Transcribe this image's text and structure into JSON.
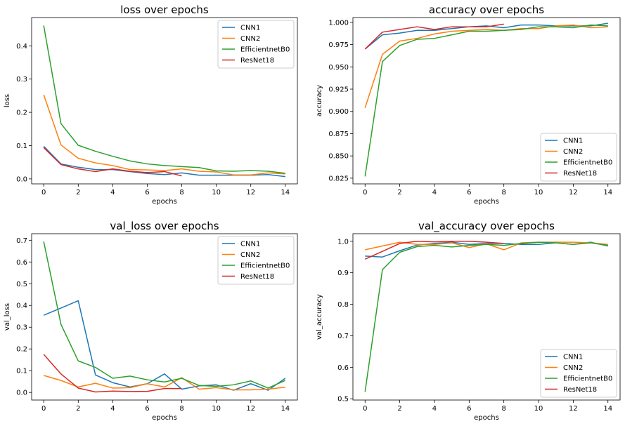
{
  "colors": {
    "CNN1": "#1f77b4",
    "CNN2": "#ff7f0e",
    "EfficientnetB0": "#2ca02c",
    "ResNet18": "#d62728"
  },
  "chart_data": [
    {
      "type": "line",
      "title": "loss over epochs",
      "xlabel": "epochs",
      "ylabel": "loss",
      "xlim": [
        -0.7,
        14.7
      ],
      "ylim": [
        -0.015,
        0.485
      ],
      "xticks": [
        0,
        2,
        4,
        6,
        8,
        10,
        12,
        14
      ],
      "yticks": [
        0.0,
        0.1,
        0.2,
        0.3,
        0.4
      ],
      "ytick_labels": [
        "0.0",
        "0.1",
        "0.2",
        "0.3",
        "0.4"
      ],
      "legend": "top-right",
      "series": [
        {
          "name": "CNN1",
          "x": [
            0,
            1,
            2,
            3,
            4,
            5,
            6,
            7,
            8,
            9,
            10,
            11,
            12,
            13,
            14
          ],
          "values": [
            0.098,
            0.045,
            0.035,
            0.028,
            0.028,
            0.022,
            0.016,
            0.013,
            0.018,
            0.011,
            0.011,
            0.011,
            0.011,
            0.013,
            0.007
          ]
        },
        {
          "name": "CNN2",
          "x": [
            0,
            1,
            2,
            3,
            4,
            5,
            6,
            7,
            8,
            9,
            10,
            11,
            12,
            13,
            14
          ],
          "values": [
            0.253,
            0.102,
            0.062,
            0.048,
            0.04,
            0.028,
            0.027,
            0.025,
            0.03,
            0.023,
            0.021,
            0.012,
            0.012,
            0.018,
            0.015
          ]
        },
        {
          "name": "EfficientnetB0",
          "x": [
            0,
            1,
            2,
            3,
            4,
            5,
            6,
            7,
            8,
            9,
            10,
            11,
            12,
            13,
            14
          ],
          "values": [
            0.461,
            0.166,
            0.101,
            0.083,
            0.068,
            0.054,
            0.045,
            0.04,
            0.037,
            0.034,
            0.024,
            0.023,
            0.025,
            0.023,
            0.017
          ]
        },
        {
          "name": "ResNet18",
          "x": [
            0,
            1,
            2,
            3,
            4,
            5,
            6,
            7,
            8
          ],
          "values": [
            0.094,
            0.043,
            0.03,
            0.022,
            0.03,
            0.023,
            0.019,
            0.022,
            0.009
          ]
        }
      ]
    },
    {
      "type": "line",
      "title": "accuracy over epochs",
      "xlabel": "epochs",
      "ylabel": "accuracy",
      "xlim": [
        -0.7,
        14.7
      ],
      "ylim": [
        0.8186,
        1.0054
      ],
      "xticks": [
        0,
        2,
        4,
        6,
        8,
        10,
        12,
        14
      ],
      "yticks": [
        0.825,
        0.85,
        0.875,
        0.9,
        0.925,
        0.95,
        0.975,
        1.0
      ],
      "ytick_labels": [
        "0.825",
        "0.850",
        "0.875",
        "0.900",
        "0.925",
        "0.950",
        "0.975",
        "1.000"
      ],
      "legend": "bottom-right",
      "series": [
        {
          "name": "CNN1",
          "x": [
            0,
            1,
            2,
            3,
            4,
            5,
            6,
            7,
            8,
            9,
            10,
            11,
            12,
            13,
            14
          ],
          "values": [
            0.97,
            0.986,
            0.988,
            0.991,
            0.991,
            0.993,
            0.995,
            0.996,
            0.994,
            0.997,
            0.997,
            0.996,
            0.996,
            0.996,
            0.999
          ]
        },
        {
          "name": "CNN2",
          "x": [
            0,
            1,
            2,
            3,
            4,
            5,
            6,
            7,
            8,
            9,
            10,
            11,
            12,
            13,
            14
          ],
          "values": [
            0.904,
            0.964,
            0.979,
            0.982,
            0.987,
            0.99,
            0.991,
            0.992,
            0.991,
            0.993,
            0.993,
            0.996,
            0.997,
            0.994,
            0.995
          ]
        },
        {
          "name": "EfficientnetB0",
          "x": [
            0,
            1,
            2,
            3,
            4,
            5,
            6,
            7,
            8,
            9,
            10,
            11,
            12,
            13,
            14
          ],
          "values": [
            0.827,
            0.956,
            0.974,
            0.981,
            0.982,
            0.986,
            0.99,
            0.99,
            0.991,
            0.992,
            0.995,
            0.995,
            0.994,
            0.997,
            0.996
          ]
        },
        {
          "name": "ResNet18",
          "x": [
            0,
            1,
            2,
            3,
            4,
            5,
            6,
            7,
            8
          ],
          "values": [
            0.97,
            0.989,
            0.992,
            0.995,
            0.992,
            0.995,
            0.995,
            0.995,
            0.998
          ]
        }
      ]
    },
    {
      "type": "line",
      "title": "val_loss over epochs",
      "xlabel": "epochs",
      "ylabel": "val_loss",
      "xlim": [
        -0.7,
        14.7
      ],
      "ylim": [
        -0.035,
        0.73
      ],
      "xticks": [
        0,
        2,
        4,
        6,
        8,
        10,
        12,
        14
      ],
      "yticks": [
        0.0,
        0.1,
        0.2,
        0.3,
        0.4,
        0.5,
        0.6,
        0.7
      ],
      "ytick_labels": [
        "0.0",
        "0.1",
        "0.2",
        "0.3",
        "0.4",
        "0.5",
        "0.6",
        "0.7"
      ],
      "legend": "top-right",
      "series": [
        {
          "name": "CNN1",
          "x": [
            0,
            1,
            2,
            3,
            4,
            5,
            6,
            7,
            8,
            9,
            10,
            11,
            12,
            13,
            14
          ],
          "values": [
            0.355,
            0.388,
            0.422,
            0.08,
            0.045,
            0.025,
            0.04,
            0.085,
            0.015,
            0.03,
            0.035,
            0.01,
            0.04,
            0.01,
            0.065
          ]
        },
        {
          "name": "CNN2",
          "x": [
            0,
            1,
            2,
            3,
            4,
            5,
            6,
            7,
            8,
            9,
            10,
            11,
            12,
            13,
            14
          ],
          "values": [
            0.078,
            0.055,
            0.025,
            0.042,
            0.02,
            0.022,
            0.04,
            0.025,
            0.068,
            0.015,
            0.022,
            0.012,
            0.012,
            0.015,
            0.024
          ]
        },
        {
          "name": "EfficientnetB0",
          "x": [
            0,
            1,
            2,
            3,
            4,
            5,
            6,
            7,
            8,
            9,
            10,
            11,
            12,
            13,
            14
          ],
          "values": [
            0.694,
            0.313,
            0.145,
            0.115,
            0.065,
            0.075,
            0.058,
            0.048,
            0.065,
            0.032,
            0.028,
            0.035,
            0.053,
            0.02,
            0.055
          ]
        },
        {
          "name": "ResNet18",
          "x": [
            0,
            1,
            2,
            3,
            4,
            5,
            6,
            7,
            8
          ],
          "values": [
            0.175,
            0.085,
            0.02,
            0.002,
            0.006,
            0.004,
            0.005,
            0.018,
            0.018
          ]
        }
      ]
    },
    {
      "type": "line",
      "title": "val_accuracy over epochs",
      "xlabel": "epochs",
      "ylabel": "val_accuracy",
      "xlim": [
        -0.7,
        14.7
      ],
      "ylim": [
        0.496,
        1.024
      ],
      "xticks": [
        0,
        2,
        4,
        6,
        8,
        10,
        12,
        14
      ],
      "yticks": [
        0.5,
        0.6,
        0.7,
        0.8,
        0.9,
        1.0
      ],
      "ytick_labels": [
        "0.5",
        "0.6",
        "0.7",
        "0.8",
        "0.9",
        "1.0"
      ],
      "legend": "bottom-right",
      "series": [
        {
          "name": "CNN1",
          "x": [
            0,
            1,
            2,
            3,
            4,
            5,
            6,
            7,
            8,
            9,
            10,
            11,
            12,
            13,
            14
          ],
          "values": [
            0.953,
            0.95,
            0.97,
            0.988,
            0.993,
            0.997,
            0.99,
            0.993,
            0.993,
            0.99,
            0.99,
            0.995,
            0.99,
            0.997,
            0.985
          ]
        },
        {
          "name": "CNN2",
          "x": [
            0,
            1,
            2,
            3,
            4,
            5,
            6,
            7,
            8,
            9,
            10,
            11,
            12,
            13,
            14
          ],
          "values": [
            0.973,
            0.985,
            0.997,
            0.99,
            0.99,
            0.995,
            0.98,
            0.992,
            0.973,
            0.995,
            0.997,
            0.997,
            0.997,
            0.995,
            0.99
          ]
        },
        {
          "name": "EfficientnetB0",
          "x": [
            0,
            1,
            2,
            3,
            4,
            5,
            6,
            7,
            8,
            9,
            10,
            11,
            12,
            13,
            14
          ],
          "values": [
            0.522,
            0.91,
            0.965,
            0.983,
            0.987,
            0.982,
            0.987,
            0.99,
            0.987,
            0.993,
            0.997,
            0.995,
            0.99,
            0.995,
            0.987
          ]
        },
        {
          "name": "ResNet18",
          "x": [
            0,
            1,
            2,
            3,
            4,
            5,
            6,
            7,
            8
          ],
          "values": [
            0.943,
            0.968,
            0.993,
            1.0,
            0.998,
            1.0,
            1.0,
            0.997,
            0.993
          ]
        }
      ]
    }
  ]
}
